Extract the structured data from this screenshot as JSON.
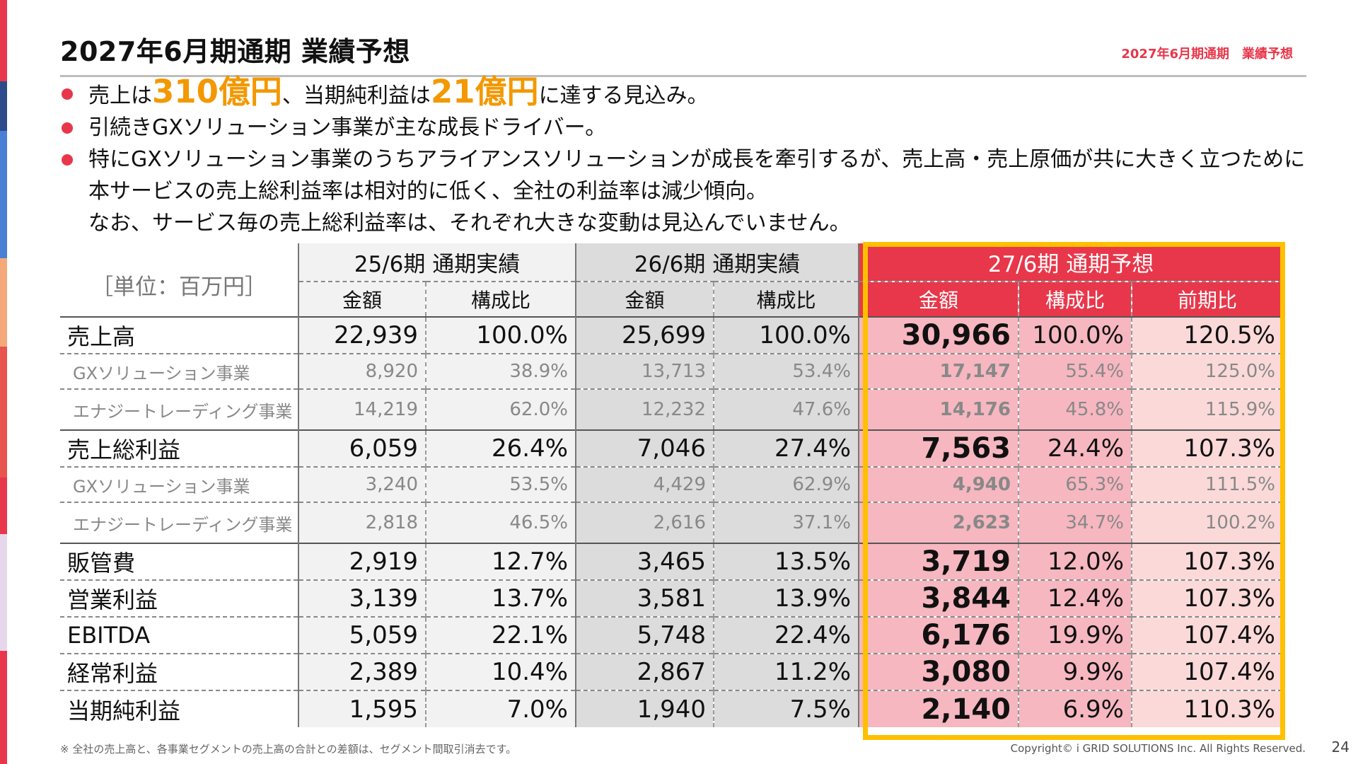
{
  "page": {
    "title": "2027年6月期通期 業績予想",
    "corner_label": "2027年6月期通期　業績予想",
    "footnote": "※ 全社の売上高と、各事業セグメントの売上高の合計との差額は、セグメント間取引消去です。",
    "copyright": "Copyright© i GRID SOLUTIONS Inc. All Rights Reserved.",
    "page_number": "24",
    "accent_color": "#e8374a",
    "highlight_color": "#f39800",
    "box_color": "#ffc000"
  },
  "bullets": {
    "b1": {
      "pre": "売上は",
      "hl1": "310億円",
      "mid": "、当期純利益は",
      "hl2": "21億円",
      "post": "に達する見込み。"
    },
    "b2": "引続きGXソリューション事業が主な成長ドライバー。",
    "b3_line1": "特にGXソリューション事業のうちアライアンスソリューションが成長を牽引するが、売上高・売上原価が共に大きく立つために",
    "b3_line2": "本サービスの売上総利益率は相対的に低く、全社の利益率は減少傾向。",
    "b3_line3": "なお、サービス毎の売上総利益率は、それぞれ大きな変動は見込んでいません。"
  },
  "table": {
    "unit": "［単位：百万円］",
    "periods": [
      "25/6期 通期実績",
      "26/6期 通期実績",
      "27/6期 通期予想"
    ],
    "subheaders": [
      "金額",
      "構成比",
      "金額",
      "構成比",
      "金額",
      "構成比",
      "前期比"
    ],
    "rows": [
      {
        "label": "売上高",
        "v": [
          "22,939",
          "100.0%",
          "25,699",
          "100.0%",
          "30,966",
          "100.0%",
          "120.5%"
        ]
      },
      {
        "label": "GXソリューション事業",
        "v": [
          "8,920",
          "38.9%",
          "13,713",
          "53.4%",
          "17,147",
          "55.4%",
          "125.0%"
        ]
      },
      {
        "label": "エナジートレーディング事業",
        "v": [
          "14,219",
          "62.0%",
          "12,232",
          "47.6%",
          "14,176",
          "45.8%",
          "115.9%"
        ]
      },
      {
        "label": "売上総利益",
        "v": [
          "6,059",
          "26.4%",
          "7,046",
          "27.4%",
          "7,563",
          "24.4%",
          "107.3%"
        ]
      },
      {
        "label": "GXソリューション事業",
        "v": [
          "3,240",
          "53.5%",
          "4,429",
          "62.9%",
          "4,940",
          "65.3%",
          "111.5%"
        ]
      },
      {
        "label": "エナジートレーディング事業",
        "v": [
          "2,818",
          "46.5%",
          "2,616",
          "37.1%",
          "2,623",
          "34.7%",
          "100.2%"
        ]
      },
      {
        "label": "販管費",
        "v": [
          "2,919",
          "12.7%",
          "3,465",
          "13.5%",
          "3,719",
          "12.0%",
          "107.3%"
        ]
      },
      {
        "label": "営業利益",
        "v": [
          "3,139",
          "13.7%",
          "3,581",
          "13.9%",
          "3,844",
          "12.4%",
          "107.3%"
        ]
      },
      {
        "label": "EBITDA",
        "v": [
          "5,059",
          "22.1%",
          "5,748",
          "22.4%",
          "6,176",
          "19.9%",
          "107.4%"
        ]
      },
      {
        "label": "経常利益",
        "v": [
          "2,389",
          "10.4%",
          "2,867",
          "11.2%",
          "3,080",
          "9.9%",
          "107.4%"
        ]
      },
      {
        "label": "当期純利益",
        "v": [
          "1,595",
          "7.0%",
          "1,940",
          "7.5%",
          "2,140",
          "6.9%",
          "110.3%"
        ]
      }
    ]
  }
}
